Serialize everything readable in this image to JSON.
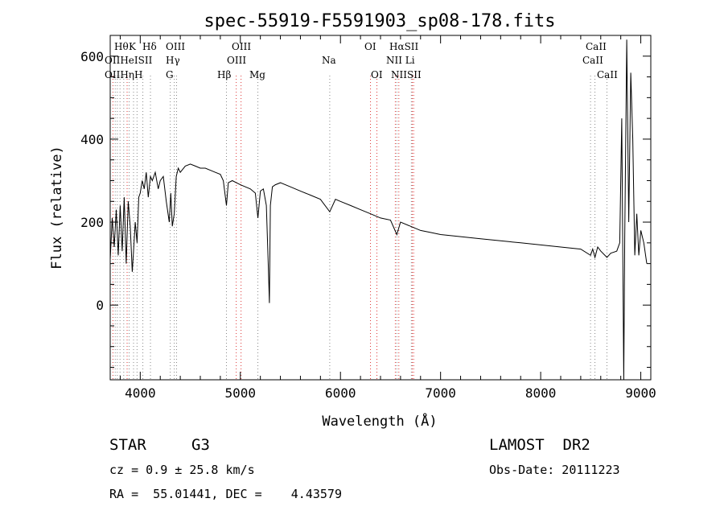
{
  "chart_data": {
    "type": "line",
    "title": "spec-55919-F5591903_sp08-178.fits",
    "xlabel": "Wavelength (Å)",
    "ylabel": "Flux (relative)",
    "xlim": [
      3700,
      9100
    ],
    "ylim": [
      -180,
      650
    ],
    "x_ticks": [
      4000,
      5000,
      6000,
      7000,
      8000,
      9000
    ],
    "y_ticks": [
      0,
      200,
      400,
      600
    ],
    "grid": false,
    "series": [
      {
        "x": [
          3700,
          3720,
          3740,
          3760,
          3780,
          3800,
          3820,
          3840,
          3860,
          3880,
          3900,
          3920,
          3933,
          3950,
          3968,
          3985,
          4000,
          4020,
          4040,
          4060,
          4080,
          4102,
          4120,
          4150,
          4180,
          4200,
          4230,
          4260,
          4290,
          4305,
          4320,
          4340,
          4360,
          4380,
          4400,
          4450,
          4500,
          4550,
          4600,
          4650,
          4700,
          4750,
          4800,
          4830,
          4861,
          4880,
          4920,
          4960,
          5000,
          5050,
          5100,
          5150,
          5175,
          5200,
          5230,
          5260,
          5280,
          5290,
          5300,
          5320,
          5350,
          5400,
          5500,
          5600,
          5700,
          5800,
          5893,
          5950,
          6000,
          6100,
          6200,
          6300,
          6400,
          6500,
          6563,
          6600,
          6700,
          6800,
          6900,
          7000,
          7200,
          7400,
          7600,
          7800,
          8000,
          8200,
          8400,
          8498,
          8520,
          8542,
          8570,
          8600,
          8662,
          8700,
          8760,
          8790,
          8810,
          8830,
          8840,
          8860,
          8880,
          8900,
          8920,
          8940,
          8960,
          8980,
          9000,
          9030,
          9060
        ],
        "y": [
          110,
          210,
          140,
          230,
          120,
          240,
          130,
          260,
          100,
          250,
          190,
          80,
          130,
          200,
          150,
          260,
          270,
          300,
          280,
          320,
          260,
          310,
          300,
          320,
          280,
          300,
          310,
          250,
          200,
          270,
          190,
          220,
          310,
          330,
          320,
          335,
          340,
          335,
          330,
          330,
          325,
          320,
          315,
          300,
          240,
          295,
          300,
          295,
          290,
          285,
          280,
          270,
          210,
          275,
          280,
          240,
          90,
          5,
          240,
          285,
          290,
          295,
          285,
          275,
          265,
          255,
          225,
          255,
          250,
          240,
          230,
          220,
          210,
          205,
          170,
          200,
          190,
          180,
          175,
          170,
          165,
          160,
          155,
          150,
          145,
          140,
          135,
          120,
          135,
          115,
          140,
          130,
          115,
          125,
          130,
          150,
          450,
          -200,
          160,
          640,
          200,
          560,
          400,
          120,
          220,
          120,
          180,
          150,
          100
        ]
      }
    ],
    "annotations": {
      "row1": [
        "Hθ",
        "K",
        "Hδ",
        "OIII",
        "OIII",
        "OI",
        "HαSII",
        "CaII"
      ],
      "row2": [
        "OIIHeISII",
        "Hγ",
        "OIII",
        "Na",
        "NII Li",
        "CaII"
      ],
      "row3": [
        "OIIHηH",
        "G",
        "Hβ",
        "Mg",
        "OI",
        "NIISII",
        "CaII"
      ]
    }
  },
  "info": {
    "class_label": "STAR",
    "subclass": "G3",
    "survey": "LAMOST  DR2",
    "cz": "cz = 0.9 ± 25.8 km/s",
    "obs_date": "Obs-Date: 20111223",
    "coords": "RA =  55.01441, DEC =    4.43579"
  }
}
